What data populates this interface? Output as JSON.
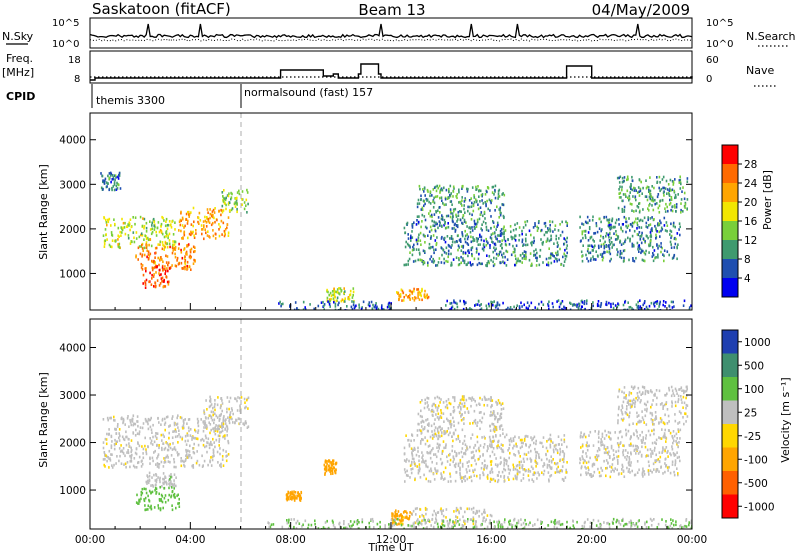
{
  "header": {
    "title_left": "Saskatoon (fitACF)",
    "title_center": "Beam 13",
    "title_right": "04/May/2009"
  },
  "summary_panels": {
    "nsky_label": "N.Sky",
    "nsky_ticks": [
      "10^5",
      "10^0"
    ],
    "nsearch_label": "N.Search",
    "nsearch_ticks": [
      "10^5",
      "10^0"
    ],
    "freq_label": "Freq.",
    "freq_unit": "[MHz]",
    "freq_ticks": [
      "18",
      "8"
    ],
    "nave_label": "Nave",
    "nave_ticks": [
      "60",
      "0"
    ],
    "cpid_label": "CPID",
    "cpid_segments": [
      {
        "name": "themis 3300",
        "start_hour": 0
      },
      {
        "name": "normalsound (fast) 157",
        "start_hour": 6
      }
    ]
  },
  "power_colorbar": {
    "label": "Power [dB]",
    "ticks": [
      "28",
      "24",
      "20",
      "16",
      "12",
      "8",
      "4"
    ],
    "colors": [
      "#ff0000",
      "#ff6a00",
      "#ffa500",
      "#f2e600",
      "#79cf3a",
      "#3f9a6f",
      "#1f4fb0",
      "#0000f0"
    ]
  },
  "velocity_colorbar": {
    "label": "Velocity [m s⁻¹]",
    "ticks": [
      "1000",
      "500",
      "100",
      "25",
      "-25",
      "-100",
      "-500",
      "-1000"
    ],
    "colors": [
      "#1f3fb0",
      "#3f8f6f",
      "#5fc040",
      "#bfbfbf",
      "#ffd700",
      "#ffa500",
      "#ff6000",
      "#ff0000"
    ]
  },
  "axes": {
    "ylabel": "Slant Range [km]",
    "yticks": [
      "4000",
      "3000",
      "2000",
      "1000"
    ],
    "xlabel": "Time UT",
    "xticks": [
      "00:00",
      "04:00",
      "08:00",
      "12:00",
      "16:00",
      "20:00",
      "00:00"
    ]
  },
  "chart_data": [
    {
      "type": "line",
      "name": "summary",
      "x_range_hours": [
        0,
        24
      ],
      "freq_mhz": {
        "x": [
          0,
          0.2,
          7.5,
          7.6,
          8.8,
          9.3,
          9.7,
          9.9,
          10.2,
          10.7,
          10.8,
          11.1,
          11.5,
          11.6,
          12,
          19.0,
          19.2,
          20.0,
          22.5,
          24
        ],
        "y": [
          9,
          10,
          10,
          14,
          14,
          11,
          12,
          10,
          10,
          12,
          17,
          17,
          12,
          10,
          10,
          16,
          16,
          10,
          10,
          11
        ]
      },
      "nave_dotted": 15
    },
    {
      "type": "heatmap",
      "name": "power",
      "value_label": "Power [dB]",
      "x_range_hours": [
        0,
        24
      ],
      "y_range_km": [
        180,
        4600
      ],
      "blobs": [
        {
          "t0": 0.5,
          "t1": 3.4,
          "r0": 1600,
          "r1": 2300,
          "v": 14
        },
        {
          "t0": 1.8,
          "t1": 4.2,
          "r0": 1100,
          "r1": 1700,
          "v": 22
        },
        {
          "t0": 2.0,
          "t1": 3.2,
          "r0": 700,
          "r1": 1200,
          "v": 26
        },
        {
          "t0": 3.5,
          "t1": 5.5,
          "r0": 1800,
          "r1": 2500,
          "v": 20
        },
        {
          "t0": 5.2,
          "t1": 6.3,
          "r0": 2400,
          "r1": 2900,
          "v": 12
        },
        {
          "t0": 0.4,
          "t1": 1.2,
          "r0": 2900,
          "r1": 3300,
          "v": 6
        },
        {
          "t0": 9.4,
          "t1": 10.5,
          "r0": 400,
          "r1": 700,
          "v": 14
        },
        {
          "t0": 12.2,
          "t1": 13.5,
          "r0": 420,
          "r1": 700,
          "v": 20
        },
        {
          "t0": 12.5,
          "t1": 19.0,
          "r0": 1200,
          "r1": 2200,
          "v": 7
        },
        {
          "t0": 13.0,
          "t1": 16.5,
          "r0": 2200,
          "r1": 3000,
          "v": 8
        },
        {
          "t0": 19.5,
          "t1": 23.5,
          "r0": 1300,
          "r1": 2300,
          "v": 7
        },
        {
          "t0": 21.0,
          "t1": 23.8,
          "r0": 2400,
          "r1": 3200,
          "v": 9
        },
        {
          "t0": 7.5,
          "t1": 12.0,
          "r0": 180,
          "r1": 400,
          "v": 5
        },
        {
          "t0": 14.0,
          "t1": 24.0,
          "r0": 180,
          "r1": 420,
          "v": 5
        }
      ]
    },
    {
      "type": "heatmap",
      "name": "velocity",
      "value_label": "Velocity [m s⁻¹]",
      "x_range_hours": [
        0,
        24
      ],
      "y_range_km": [
        180,
        4600
      ],
      "blobs": [
        {
          "t0": 0.5,
          "t1": 5.5,
          "r0": 1500,
          "r1": 2600,
          "v": 0
        },
        {
          "t0": 4.5,
          "t1": 6.3,
          "r0": 2300,
          "r1": 3000,
          "v": 0
        },
        {
          "t0": 1.8,
          "t1": 3.6,
          "r0": 600,
          "r1": 1100,
          "v": 110
        },
        {
          "t0": 2.2,
          "t1": 3.4,
          "r0": 1100,
          "r1": 1400,
          "v": 30
        },
        {
          "t0": 7.8,
          "t1": 8.4,
          "r0": 800,
          "r1": 1000,
          "v": -200
        },
        {
          "t0": 9.3,
          "t1": 9.8,
          "r0": 1350,
          "r1": 1650,
          "v": -200
        },
        {
          "t0": 12.0,
          "t1": 12.8,
          "r0": 300,
          "r1": 600,
          "v": -80
        },
        {
          "t0": 12.8,
          "t1": 16.0,
          "r0": 300,
          "r1": 650,
          "v": 0
        },
        {
          "t0": 12.5,
          "t1": 19.0,
          "r0": 1200,
          "r1": 2200,
          "v": 0
        },
        {
          "t0": 13.0,
          "t1": 16.5,
          "r0": 2200,
          "r1": 3000,
          "v": 0
        },
        {
          "t0": 19.5,
          "t1": 23.5,
          "r0": 1300,
          "r1": 2300,
          "v": 0
        },
        {
          "t0": 21.0,
          "t1": 23.8,
          "r0": 2400,
          "r1": 3200,
          "v": 0
        },
        {
          "t0": 7.0,
          "t1": 24.0,
          "r0": 180,
          "r1": 420,
          "v": 60
        }
      ]
    }
  ]
}
